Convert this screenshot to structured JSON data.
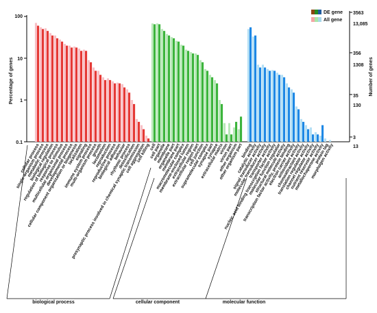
{
  "chart_data": {
    "type": "bar",
    "yscale": "log",
    "ylim": [
      0.1,
      100
    ],
    "y_ticks_left": [
      "100",
      "10",
      "1",
      "0.1"
    ],
    "ylabel": "Percentage of genes",
    "y2label": "Number of genes",
    "y2_ticks": [
      {
        "de": "3563",
        "all": "13,085"
      },
      {
        "de": "356",
        "all": "1308"
      },
      {
        "de": "35",
        "all": "130"
      },
      {
        "de": "3",
        "all": "13"
      }
    ],
    "legend": [
      {
        "name": "DE gene",
        "colors": [
          "#8b4513",
          "#228b22",
          "#1e5a9e"
        ]
      },
      {
        "name": "All gene",
        "colors": [
          "#f4a6a6",
          "#a8e6a8",
          "#a8d8ea"
        ]
      }
    ],
    "groups": [
      {
        "name": "biological process",
        "color_de": "#e53935",
        "color_all": "#f8c0c6",
        "categories": [
          {
            "name": "cellular process",
            "de": 60,
            "all": 70
          },
          {
            "name": "single-organism process",
            "de": 50,
            "all": 55
          },
          {
            "name": "metabolic process",
            "de": 45,
            "all": 52
          },
          {
            "name": "biological regulation",
            "de": 35,
            "all": 40
          },
          {
            "name": "regulation of biological process",
            "de": 30,
            "all": 35
          },
          {
            "name": "response to stimulus",
            "de": 25,
            "all": 28
          },
          {
            "name": "multicellular organismal process",
            "de": 20,
            "all": 22
          },
          {
            "name": "developmental process",
            "de": 18,
            "all": 20
          },
          {
            "name": "cellular component organization or biogenesis",
            "de": 18,
            "all": 19
          },
          {
            "name": "localization",
            "de": 15,
            "all": 17
          },
          {
            "name": "signaling",
            "de": 15,
            "all": 16
          },
          {
            "name": "immune system process",
            "de": 8,
            "all": 9
          },
          {
            "name": "multi-organism process",
            "de": 5,
            "all": 6
          },
          {
            "name": "growth",
            "de": 4,
            "all": 5
          },
          {
            "name": "locomotion",
            "de": 3,
            "all": 3.5
          },
          {
            "name": "reproduction",
            "de": 3,
            "all": 3.3
          },
          {
            "name": "reproductive process",
            "de": 2.5,
            "all": 2.8
          },
          {
            "name": "biological adhesion",
            "de": 2.5,
            "all": 2.6
          },
          {
            "name": "behavior",
            "de": 2,
            "all": 2.4
          },
          {
            "name": "rhythmic process",
            "de": 1.5,
            "all": 1.8
          },
          {
            "name": "detoxification",
            "de": 0.8,
            "all": 1.0
          },
          {
            "name": "presynaptic process involved in chemical synaptic transmission",
            "de": 0.3,
            "all": 0.35
          },
          {
            "name": "cell aggregation",
            "de": 0.2,
            "all": 0.25
          },
          {
            "name": "cell killing",
            "de": 0.12,
            "all": 0.14
          }
        ]
      },
      {
        "name": "cellular component",
        "color_de": "#3cb43c",
        "color_all": "#b8e8b8",
        "categories": [
          {
            "name": "cell",
            "de": 65,
            "all": 68
          },
          {
            "name": "cell part",
            "de": 65,
            "all": 68
          },
          {
            "name": "organelle",
            "de": 45,
            "all": 50
          },
          {
            "name": "membrane",
            "de": 35,
            "all": 38
          },
          {
            "name": "organelle part",
            "de": 30,
            "all": 32
          },
          {
            "name": "membrane part",
            "de": 25,
            "all": 26
          },
          {
            "name": "macromolecular complex",
            "de": 20,
            "all": 21
          },
          {
            "name": "membrane-enclosed lumen",
            "de": 15,
            "all": 16
          },
          {
            "name": "extracellular region",
            "de": 13,
            "all": 14
          },
          {
            "name": "extracellular region part",
            "de": 12,
            "all": 13
          },
          {
            "name": "cell junction",
            "de": 8,
            "all": 9
          },
          {
            "name": "supramolecular complex",
            "de": 5,
            "all": 5.5
          },
          {
            "name": "synapse part",
            "de": 3.5,
            "all": 4
          },
          {
            "name": "synapse",
            "de": 2.5,
            "all": 3
          },
          {
            "name": "extracellular matrix",
            "de": 0.8,
            "all": 1.0
          },
          {
            "name": "virion",
            "de": 0.15,
            "all": 0.28
          },
          {
            "name": "virion part",
            "de": 0.15,
            "all": 0.28
          },
          {
            "name": "other organism",
            "de": 0.3,
            "all": 0.22
          },
          {
            "name": "other organism part",
            "de": 0.4,
            "all": 0.2
          }
        ]
      },
      {
        "name": "molecular function",
        "color_de": "#1e88e5",
        "color_all": "#b3dff5",
        "categories": [
          {
            "name": "binding",
            "de": 55,
            "all": 50
          },
          {
            "name": "catalytic activity",
            "de": 35,
            "all": 33
          },
          {
            "name": "signal transducer activity",
            "de": 6,
            "all": 7
          },
          {
            "name": "molecular transducer activity",
            "de": 6,
            "all": 7
          },
          {
            "name": "transporter activity",
            "de": 5,
            "all": 5.5
          },
          {
            "name": "nucleic acid binding transcription factor activity",
            "de": 5,
            "all": 5.2
          },
          {
            "name": "molecular function regulator",
            "de": 4,
            "all": 4.5
          },
          {
            "name": "structural molecule activity",
            "de": 3.5,
            "all": 4
          },
          {
            "name": "transcription factor activity, protein binding",
            "de": 2,
            "all": 2.5
          },
          {
            "name": "electron carrier activity",
            "de": 1.5,
            "all": 1.8
          },
          {
            "name": "antioxidant activity",
            "de": 0.6,
            "all": 0.7
          },
          {
            "name": "chemoattractant activity",
            "de": 0.3,
            "all": 0.35
          },
          {
            "name": "translation regulator activity",
            "de": 0.2,
            "all": 0.25
          },
          {
            "name": "channel regulator activity",
            "de": 0.15,
            "all": 0.22
          },
          {
            "name": "nutrient reservoir activity",
            "de": 0.15,
            "all": 0.17
          },
          {
            "name": "metallochaperone activity",
            "de": 0.25,
            "all": 0.14
          },
          {
            "name": "protein tag",
            "de": 0.1,
            "all": 0.12
          },
          {
            "name": "morphogen activity",
            "de": 0.1,
            "all": 0.11
          }
        ]
      }
    ]
  }
}
